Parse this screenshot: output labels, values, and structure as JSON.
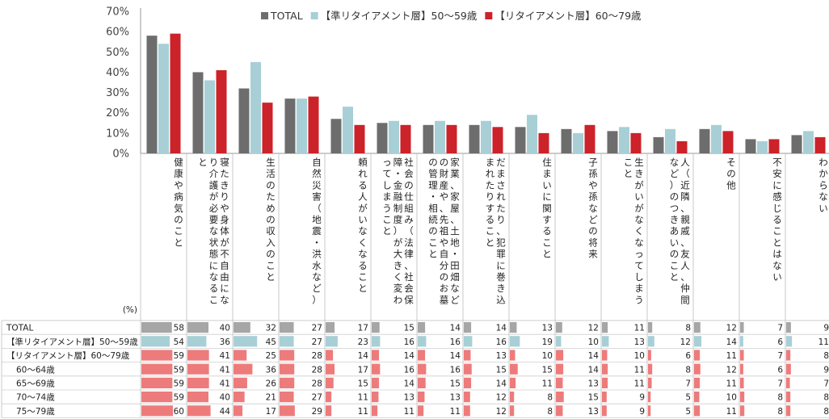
{
  "chart_data": {
    "type": "bar",
    "title": "",
    "xlabel": "",
    "ylabel": "",
    "ylim": [
      0,
      70
    ],
    "y_ticks": [
      "0%",
      "10%",
      "20%",
      "30%",
      "40%",
      "50%",
      "60%",
      "70%"
    ],
    "grid": false,
    "legend_position": "top",
    "unit_label": "(%)",
    "categories": [
      "健康や病気のこと",
      "寝たきりや身体が不自由になり介護が必要な状態になること",
      "生活のための収入のこと",
      "自然災害（地震・洪水など）",
      "頼れる人がいなくなること",
      "社会の仕組み（法律、社会保障・金融制度）が大きく変わってしまうこと",
      "家業、家屋、土地・田畑などの財産や、先祖や自分のお墓の管理・相続のこと",
      "だまされたり、犯罪に巻き込まれたりすること",
      "住まいに関すること",
      "子孫や孫などの将来",
      "生きがいがなくなってしまうこと",
      "人（近隣、親戚、友人、仲間など）のつきあいのこと",
      "その他",
      "不安に感じることはない",
      "わからない"
    ],
    "series": [
      {
        "name": "TOTAL",
        "color": "#6d6d6d",
        "values": [
          58,
          40,
          32,
          27,
          17,
          15,
          14,
          14,
          13,
          12,
          11,
          8,
          12,
          7,
          9
        ]
      },
      {
        "name": "【準リタイアメント層】50～59歳",
        "color": "#a8cfd6",
        "values": [
          54,
          36,
          45,
          27,
          23,
          16,
          16,
          16,
          19,
          10,
          13,
          12,
          14,
          6,
          11
        ]
      },
      {
        "name": "【リタイアメント層】60～79歳",
        "color": "#cc2229",
        "values": [
          59,
          41,
          25,
          28,
          14,
          14,
          14,
          13,
          10,
          14,
          10,
          6,
          11,
          7,
          8
        ]
      }
    ],
    "table_rows": [
      {
        "label": "TOTAL",
        "color": "#a6a6a6",
        "values": [
          58,
          40,
          32,
          27,
          17,
          15,
          14,
          14,
          13,
          12,
          11,
          8,
          12,
          7,
          9
        ]
      },
      {
        "label": "【準リタイアメント層】50～59歳",
        "color": "#a8cfd6",
        "values": [
          54,
          36,
          45,
          27,
          23,
          16,
          16,
          16,
          19,
          10,
          13,
          12,
          14,
          6,
          11
        ]
      },
      {
        "label": "【リタイアメント層】60～79歳",
        "color": "#ee7b7b",
        "values": [
          59,
          41,
          25,
          28,
          14,
          14,
          14,
          13,
          10,
          14,
          10,
          6,
          11,
          7,
          8
        ]
      },
      {
        "label": "60～64歳",
        "color": "#ee7b7b",
        "values": [
          59,
          41,
          36,
          28,
          17,
          16,
          16,
          15,
          15,
          14,
          11,
          8,
          12,
          6,
          9
        ]
      },
      {
        "label": "65～69歳",
        "color": "#ee7b7b",
        "values": [
          59,
          41,
          26,
          28,
          15,
          14,
          15,
          14,
          11,
          13,
          11,
          7,
          11,
          7,
          7
        ]
      },
      {
        "label": "70～74歳",
        "color": "#ee7b7b",
        "values": [
          59,
          40,
          21,
          27,
          11,
          13,
          13,
          12,
          8,
          15,
          9,
          5,
          10,
          8,
          8
        ]
      },
      {
        "label": "75～79歳",
        "color": "#ee7b7b",
        "values": [
          60,
          44,
          17,
          29,
          11,
          11,
          11,
          12,
          8,
          13,
          9,
          5,
          11,
          8,
          8
        ]
      }
    ]
  }
}
